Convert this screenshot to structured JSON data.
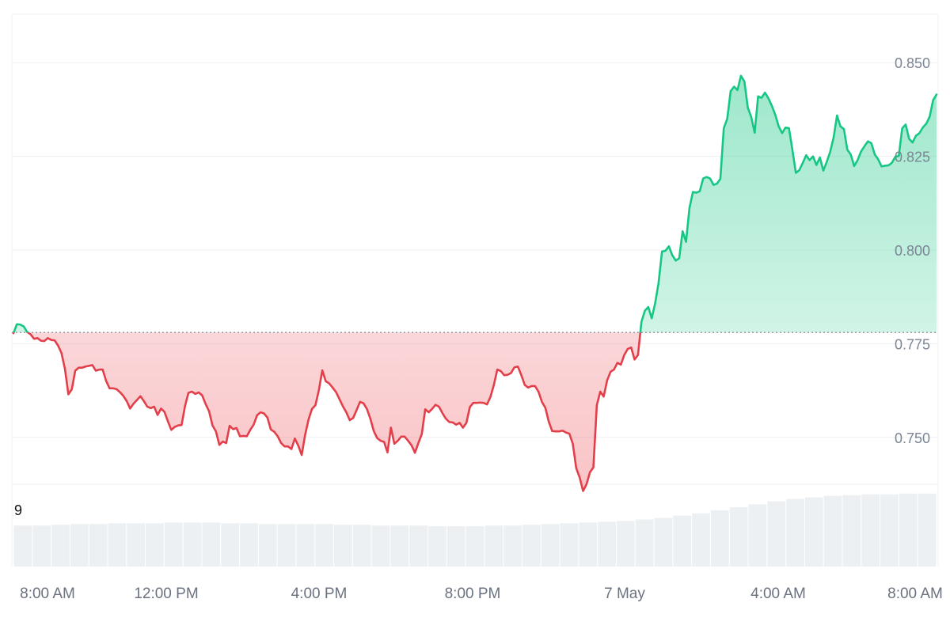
{
  "chart_data": {
    "type": "area",
    "baseline": 0.778,
    "colors": {
      "up_line": "#16c784",
      "down_line": "#e23f4a",
      "up_fill": "#16c784",
      "down_fill": "#ea3943",
      "grid": "#eff1f4",
      "volume": "#dfe3e8"
    },
    "y_axis": {
      "ticks": [
        "0.750",
        "0.775",
        "0.800",
        "0.825",
        "0.850"
      ],
      "ylim": [
        0.7375,
        0.8625
      ]
    },
    "x_axis": {
      "labels": [
        "8:00 AM",
        "12:00 PM",
        "4:00 PM",
        "8:00 PM",
        "7 May",
        "4:00 AM",
        "8:00 AM"
      ]
    },
    "volume_label": "9",
    "series": [
      {
        "values": [
          0.7778,
          0.7802,
          0.7801,
          0.7796,
          0.7781,
          0.7775,
          0.7763,
          0.7765,
          0.7758,
          0.7757,
          0.7765,
          0.776,
          0.7759,
          0.7745,
          0.7725,
          0.7683,
          0.7615,
          0.7628,
          0.7678,
          0.7686,
          0.7686,
          0.7689,
          0.7691,
          0.7693,
          0.7678,
          0.7681,
          0.7681,
          0.7651,
          0.7631,
          0.7631,
          0.7629,
          0.7621,
          0.7611,
          0.7597,
          0.7577,
          0.759,
          0.76,
          0.761,
          0.7597,
          0.7582,
          0.7578,
          0.7582,
          0.756,
          0.7577,
          0.7568,
          0.7543,
          0.752,
          0.7528,
          0.7532,
          0.7533,
          0.7584,
          0.7619,
          0.7622,
          0.7616,
          0.762,
          0.7612,
          0.7589,
          0.757,
          0.7532,
          0.7516,
          0.748,
          0.7489,
          0.7485,
          0.7531,
          0.7522,
          0.7525,
          0.7503,
          0.7504,
          0.7503,
          0.752,
          0.7534,
          0.7559,
          0.7567,
          0.7564,
          0.7553,
          0.7521,
          0.7515,
          0.7503,
          0.7485,
          0.7476,
          0.7476,
          0.7469,
          0.7497,
          0.7478,
          0.7453,
          0.7507,
          0.7548,
          0.7576,
          0.7586,
          0.7626,
          0.7679,
          0.765,
          0.7644,
          0.7633,
          0.7621,
          0.7602,
          0.7583,
          0.7567,
          0.7546,
          0.7552,
          0.7573,
          0.7595,
          0.7591,
          0.7576,
          0.755,
          0.7517,
          0.7498,
          0.7491,
          0.7488,
          0.746,
          0.7526,
          0.7483,
          0.7491,
          0.7502,
          0.7502,
          0.7491,
          0.7479,
          0.7459,
          0.7485,
          0.7509,
          0.7575,
          0.7567,
          0.7576,
          0.7587,
          0.7582,
          0.7565,
          0.755,
          0.7541,
          0.754,
          0.7534,
          0.7539,
          0.7526,
          0.7539,
          0.7581,
          0.7592,
          0.7592,
          0.7593,
          0.7592,
          0.7588,
          0.7608,
          0.764,
          0.7681,
          0.7677,
          0.7666,
          0.7667,
          0.7672,
          0.7687,
          0.7689,
          0.7666,
          0.764,
          0.7633,
          0.7637,
          0.7637,
          0.7622,
          0.7595,
          0.7579,
          0.7542,
          0.7517,
          0.7516,
          0.7516,
          0.7518,
          0.7513,
          0.751,
          0.7483,
          0.7418,
          0.7393,
          0.7357,
          0.7375,
          0.7407,
          0.742,
          0.7586,
          0.7622,
          0.7609,
          0.7652,
          0.7675,
          0.7681,
          0.7699,
          0.7694,
          0.772,
          0.7736,
          0.774,
          0.7708,
          0.772,
          0.7808,
          0.7838,
          0.7848,
          0.7818,
          0.7858,
          0.7913,
          0.7996,
          0.7998,
          0.801,
          0.7986,
          0.7972,
          0.7978,
          0.805,
          0.8022,
          0.8112,
          0.8155,
          0.8153,
          0.8157,
          0.8191,
          0.8195,
          0.8191,
          0.8174,
          0.8177,
          0.819,
          0.8325,
          0.835,
          0.8424,
          0.8436,
          0.8427,
          0.8465,
          0.845,
          0.838,
          0.8355,
          0.8313,
          0.841,
          0.8406,
          0.842,
          0.8405,
          0.8385,
          0.8361,
          0.833,
          0.8312,
          0.8327,
          0.8325,
          0.8267,
          0.8206,
          0.8213,
          0.8232,
          0.8253,
          0.824,
          0.825,
          0.8227,
          0.8247,
          0.8212,
          0.8235,
          0.8262,
          0.83,
          0.8359,
          0.833,
          0.8323,
          0.8268,
          0.8255,
          0.8224,
          0.824,
          0.8263,
          0.8277,
          0.829,
          0.8285,
          0.8255,
          0.8242,
          0.8223,
          0.8225,
          0.8226,
          0.8233,
          0.8249,
          0.8251,
          0.8325,
          0.8335,
          0.8297,
          0.8287,
          0.8305,
          0.8312,
          0.8327,
          0.8337,
          0.8356,
          0.84,
          0.8415
        ]
      },
      {
        "name": "volume",
        "values": [
          0.54,
          0.54,
          0.55,
          0.56,
          0.56,
          0.57,
          0.57,
          0.57,
          0.58,
          0.58,
          0.58,
          0.57,
          0.57,
          0.56,
          0.56,
          0.56,
          0.56,
          0.55,
          0.55,
          0.54,
          0.54,
          0.54,
          0.53,
          0.53,
          0.53,
          0.54,
          0.54,
          0.55,
          0.56,
          0.57,
          0.58,
          0.59,
          0.6,
          0.62,
          0.64,
          0.67,
          0.7,
          0.74,
          0.78,
          0.82,
          0.86,
          0.89,
          0.91,
          0.93,
          0.94,
          0.95,
          0.95,
          0.96,
          0.96
        ]
      }
    ]
  }
}
